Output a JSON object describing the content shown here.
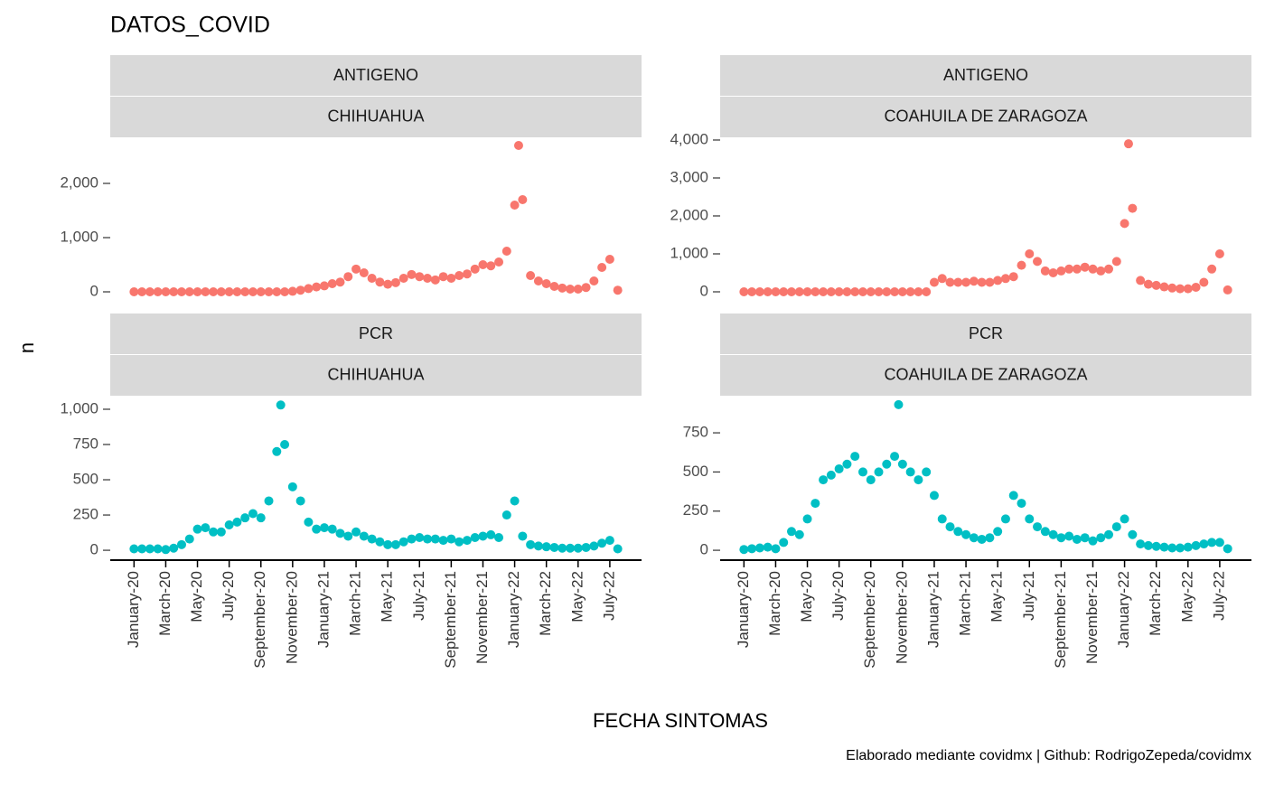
{
  "title": "DATOS_COVID",
  "x_label": "FECHA SINTOMAS",
  "y_label": "n",
  "caption": "Elaborado mediante covidmx | Github: RodrigoZepeda/covidmx",
  "chart_data": [
    {
      "type": "scatter",
      "facets": [
        "ANTIGENO",
        "CHIHUAHUA"
      ],
      "color": "#f8766d",
      "xlim": [
        -1.5,
        32
      ],
      "xticks": [
        {
          "value": 0,
          "label": "January-20"
        },
        {
          "value": 2,
          "label": "March-20"
        },
        {
          "value": 4,
          "label": "May-20"
        },
        {
          "value": 6,
          "label": "July-20"
        },
        {
          "value": 8,
          "label": "September-20"
        },
        {
          "value": 10,
          "label": "November-20"
        },
        {
          "value": 12,
          "label": "January-21"
        },
        {
          "value": 14,
          "label": "March-21"
        },
        {
          "value": 16,
          "label": "May-21"
        },
        {
          "value": 18,
          "label": "July-21"
        },
        {
          "value": 20,
          "label": "September-21"
        },
        {
          "value": 22,
          "label": "November-21"
        },
        {
          "value": 24,
          "label": "January-22"
        },
        {
          "value": 26,
          "label": "March-22"
        },
        {
          "value": 28,
          "label": "May-22"
        },
        {
          "value": 30,
          "label": "July-22"
        }
      ],
      "ylim": [
        -333,
        2850
      ],
      "yticks": [
        0,
        {
          "value": 1000,
          "label": "1,000"
        },
        {
          "value": 2000,
          "label": "2,000"
        }
      ],
      "x": [
        0,
        0.5,
        1,
        1.5,
        2,
        2.5,
        3,
        3.5,
        4,
        4.5,
        5,
        5.5,
        6,
        6.5,
        7,
        7.5,
        8,
        8.5,
        9,
        9.5,
        10,
        10.5,
        11,
        11.5,
        12,
        12.5,
        13,
        13.5,
        14,
        14.5,
        15,
        15.5,
        16,
        16.5,
        17,
        17.5,
        18,
        18.5,
        19,
        19.5,
        20,
        20.5,
        21,
        21.5,
        22,
        22.5,
        23,
        23.5,
        24,
        24.25,
        24.5,
        25,
        25.5,
        26,
        26.5,
        27,
        27.5,
        28,
        28.5,
        29,
        29.5,
        30,
        30.5
      ],
      "values": [
        0,
        0,
        0,
        0,
        0,
        0,
        0,
        0,
        0,
        0,
        0,
        0,
        0,
        0,
        0,
        0,
        0,
        0,
        0,
        0,
        10,
        30,
        60,
        90,
        110,
        150,
        180,
        280,
        420,
        350,
        250,
        180,
        140,
        170,
        250,
        320,
        280,
        250,
        220,
        280,
        250,
        300,
        330,
        420,
        500,
        480,
        550,
        750,
        1600,
        2700,
        1700,
        300,
        200,
        150,
        100,
        70,
        50,
        50,
        80,
        200,
        450,
        600,
        30
      ]
    },
    {
      "type": "scatter",
      "facets": [
        "ANTIGENO",
        "COAHUILA DE ZARAGOZA"
      ],
      "color": "#f8766d",
      "xlim": [
        -1.5,
        32
      ],
      "xticks": [
        {
          "value": 0,
          "label": "January-20"
        },
        {
          "value": 2,
          "label": "March-20"
        },
        {
          "value": 4,
          "label": "May-20"
        },
        {
          "value": 6,
          "label": "July-20"
        },
        {
          "value": 8,
          "label": "September-20"
        },
        {
          "value": 10,
          "label": "November-20"
        },
        {
          "value": 12,
          "label": "January-21"
        },
        {
          "value": 14,
          "label": "March-21"
        },
        {
          "value": 16,
          "label": "May-21"
        },
        {
          "value": 18,
          "label": "July-21"
        },
        {
          "value": 20,
          "label": "September-21"
        },
        {
          "value": 22,
          "label": "November-21"
        },
        {
          "value": 24,
          "label": "January-22"
        },
        {
          "value": 26,
          "label": "March-22"
        },
        {
          "value": 28,
          "label": "May-22"
        },
        {
          "value": 30,
          "label": "July-22"
        }
      ],
      "ylim": [
        -476,
        4071
      ],
      "yticks": [
        0,
        {
          "value": 1000,
          "label": "1,000"
        },
        {
          "value": 2000,
          "label": "2,000"
        },
        {
          "value": 3000,
          "label": "3,000"
        },
        {
          "value": 4000,
          "label": "4,000"
        }
      ],
      "x": [
        0,
        0.5,
        1,
        1.5,
        2,
        2.5,
        3,
        3.5,
        4,
        4.5,
        5,
        5.5,
        6,
        6.5,
        7,
        7.5,
        8,
        8.5,
        9,
        9.5,
        10,
        10.5,
        11,
        11.5,
        12,
        12.5,
        13,
        13.5,
        14,
        14.5,
        15,
        15.5,
        16,
        16.5,
        17,
        17.5,
        18,
        18.5,
        19,
        19.5,
        20,
        20.5,
        21,
        21.5,
        22,
        22.5,
        23,
        23.5,
        24,
        24.25,
        24.5,
        25,
        25.5,
        26,
        26.5,
        27,
        27.5,
        28,
        28.5,
        29,
        29.5,
        30,
        30.5
      ],
      "values": [
        0,
        0,
        0,
        0,
        0,
        0,
        0,
        0,
        0,
        0,
        0,
        0,
        0,
        0,
        0,
        0,
        0,
        0,
        0,
        0,
        0,
        0,
        0,
        0,
        250,
        350,
        250,
        250,
        250,
        280,
        250,
        250,
        300,
        350,
        400,
        700,
        1000,
        800,
        550,
        500,
        550,
        600,
        600,
        650,
        600,
        550,
        600,
        800,
        1800,
        3900,
        2200,
        300,
        200,
        170,
        130,
        100,
        80,
        80,
        120,
        250,
        600,
        1000,
        50
      ]
    },
    {
      "type": "scatter",
      "facets": [
        "PCR",
        "CHIHUAHUA"
      ],
      "color": "#00bfc4",
      "xlim": [
        -1.5,
        32
      ],
      "xticks": [
        {
          "value": 0,
          "label": "January-20"
        },
        {
          "value": 2,
          "label": "March-20"
        },
        {
          "value": 4,
          "label": "May-20"
        },
        {
          "value": 6,
          "label": "July-20"
        },
        {
          "value": 8,
          "label": "September-20"
        },
        {
          "value": 10,
          "label": "November-20"
        },
        {
          "value": 12,
          "label": "January-21"
        },
        {
          "value": 14,
          "label": "March-21"
        },
        {
          "value": 16,
          "label": "May-21"
        },
        {
          "value": 18,
          "label": "July-21"
        },
        {
          "value": 20,
          "label": "September-21"
        },
        {
          "value": 22,
          "label": "November-21"
        },
        {
          "value": 24,
          "label": "January-22"
        },
        {
          "value": 26,
          "label": "March-22"
        },
        {
          "value": 28,
          "label": "May-22"
        },
        {
          "value": 30,
          "label": "July-22"
        }
      ],
      "ylim": [
        -70,
        1096
      ],
      "yticks": [
        0,
        250,
        500,
        750,
        {
          "value": 1000,
          "label": "1,000"
        }
      ],
      "x": [
        0,
        0.5,
        1,
        1.5,
        2,
        2.5,
        3,
        3.5,
        4,
        4.5,
        5,
        5.5,
        6,
        6.5,
        7,
        7.5,
        8,
        8.5,
        9,
        9.25,
        9.5,
        10,
        10.5,
        11,
        11.5,
        12,
        12.5,
        13,
        13.5,
        14,
        14.5,
        15,
        15.5,
        16,
        16.5,
        17,
        17.5,
        18,
        18.5,
        19,
        19.5,
        20,
        20.5,
        21,
        21.5,
        22,
        22.5,
        23,
        23.5,
        24,
        24.5,
        25,
        25.5,
        26,
        26.5,
        27,
        27.5,
        28,
        28.5,
        29,
        29.5,
        30,
        30.5
      ],
      "values": [
        10,
        10,
        10,
        10,
        5,
        15,
        40,
        80,
        150,
        160,
        130,
        130,
        180,
        200,
        230,
        260,
        230,
        350,
        700,
        1030,
        750,
        450,
        350,
        200,
        150,
        160,
        150,
        120,
        100,
        130,
        100,
        80,
        60,
        40,
        40,
        60,
        80,
        90,
        80,
        80,
        70,
        80,
        60,
        70,
        90,
        100,
        110,
        90,
        250,
        350,
        100,
        40,
        30,
        25,
        20,
        15,
        15,
        15,
        20,
        30,
        50,
        70,
        10
      ]
    },
    {
      "type": "scatter",
      "facets": [
        "PCR",
        "COAHUILA DE ZARAGOZA"
      ],
      "color": "#00bfc4",
      "xlim": [
        -1.5,
        32
      ],
      "xticks": [
        {
          "value": 0,
          "label": "January-20"
        },
        {
          "value": 2,
          "label": "March-20"
        },
        {
          "value": 4,
          "label": "May-20"
        },
        {
          "value": 6,
          "label": "July-20"
        },
        {
          "value": 8,
          "label": "September-20"
        },
        {
          "value": 10,
          "label": "November-20"
        },
        {
          "value": 12,
          "label": "January-21"
        },
        {
          "value": 14,
          "label": "March-21"
        },
        {
          "value": 16,
          "label": "May-21"
        },
        {
          "value": 18,
          "label": "July-21"
        },
        {
          "value": 20,
          "label": "September-21"
        },
        {
          "value": 22,
          "label": "November-21"
        },
        {
          "value": 24,
          "label": "January-22"
        },
        {
          "value": 26,
          "label": "March-22"
        },
        {
          "value": 28,
          "label": "May-22"
        },
        {
          "value": 30,
          "label": "July-22"
        }
      ],
      "ylim": [
        -63,
        987
      ],
      "yticks": [
        0,
        250,
        500,
        750
      ],
      "x": [
        0,
        0.5,
        1,
        1.5,
        2,
        2.5,
        3,
        3.5,
        4,
        4.5,
        5,
        5.5,
        6,
        6.5,
        7,
        7.5,
        8,
        8.5,
        9,
        9.5,
        9.75,
        10,
        10.5,
        11,
        11.5,
        12,
        12.5,
        13,
        13.5,
        14,
        14.5,
        15,
        15.5,
        16,
        16.5,
        17,
        17.5,
        18,
        18.5,
        19,
        19.5,
        20,
        20.5,
        21,
        21.5,
        22,
        22.5,
        23,
        23.5,
        24,
        24.5,
        25,
        25.5,
        26,
        26.5,
        27,
        27.5,
        28,
        28.5,
        29,
        29.5,
        30,
        30.5
      ],
      "values": [
        5,
        10,
        15,
        20,
        10,
        50,
        120,
        100,
        200,
        300,
        450,
        480,
        520,
        550,
        600,
        500,
        450,
        500,
        550,
        600,
        930,
        550,
        500,
        450,
        500,
        350,
        200,
        150,
        120,
        100,
        80,
        70,
        80,
        120,
        200,
        350,
        300,
        200,
        150,
        120,
        100,
        80,
        90,
        70,
        80,
        60,
        80,
        100,
        150,
        200,
        100,
        40,
        30,
        25,
        20,
        15,
        15,
        20,
        30,
        40,
        50,
        50,
        10
      ]
    }
  ]
}
